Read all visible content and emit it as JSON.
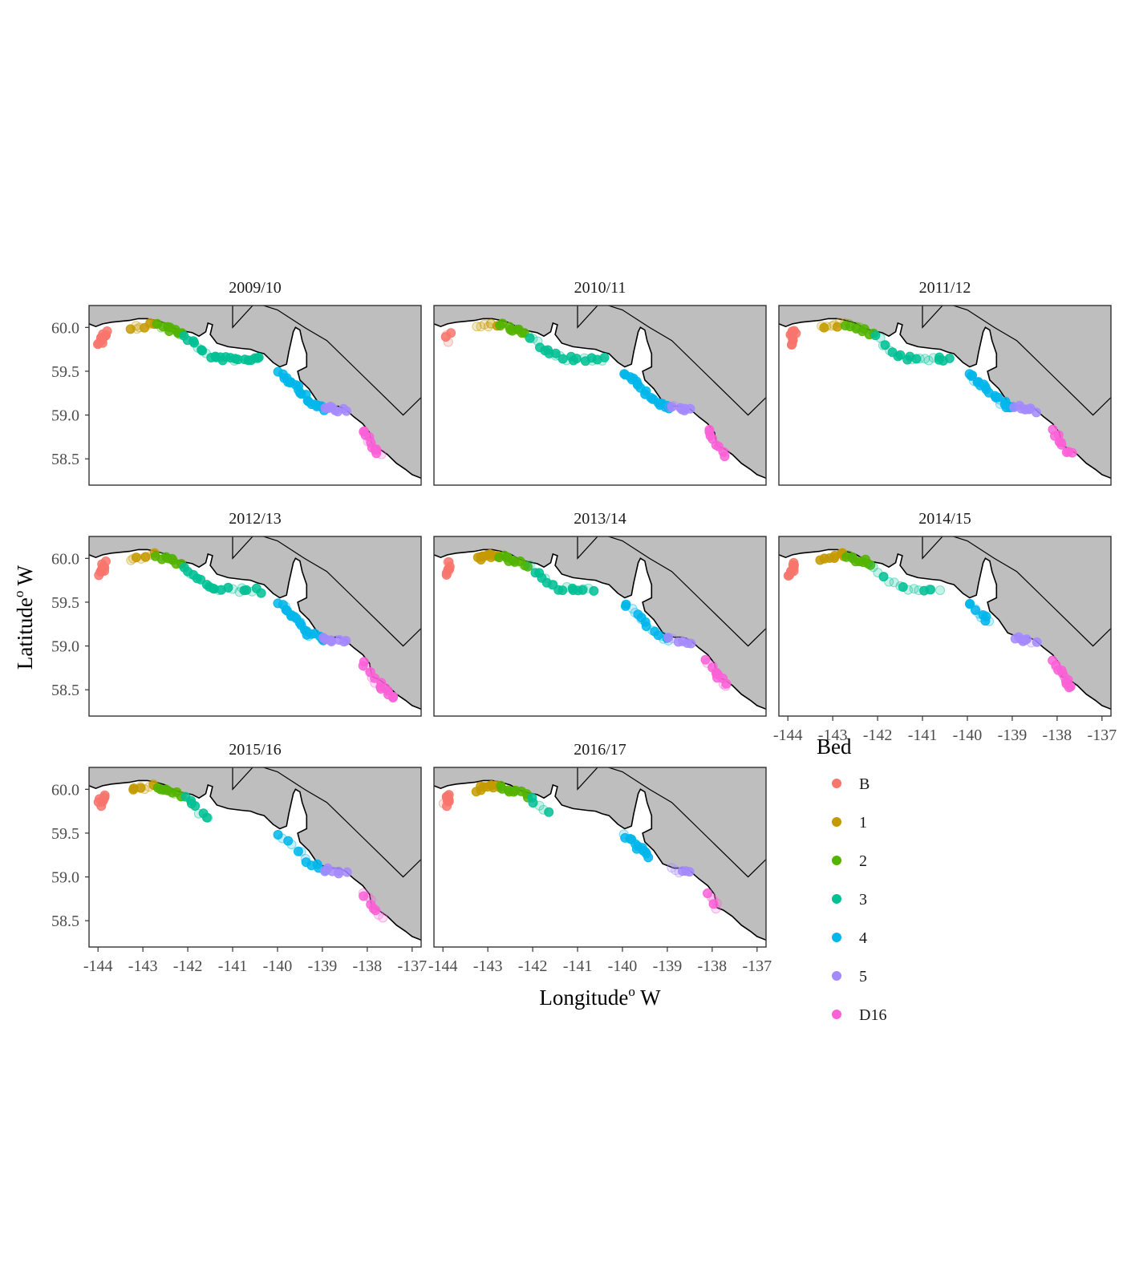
{
  "chart_data": {
    "type": "scatter",
    "title": "",
    "xlabel": "Longitude",
    "xlabel_sup": "o",
    "xlabel_tail": " W",
    "ylabel": "Latitude",
    "ylabel_sup": "o",
    "ylabel_tail": " W",
    "xlim": [
      -144.2,
      -136.8
    ],
    "ylim": [
      58.2,
      60.25
    ],
    "x_ticks": [
      -144,
      -143,
      -142,
      -141,
      -140,
      -139,
      -138,
      -137
    ],
    "x_tick_labels": [
      "-144",
      "-143",
      "-142",
      "-141",
      "-140",
      "-139",
      "-138",
      "-137"
    ],
    "y_ticks": [
      60.0,
      59.5,
      59.0,
      58.5
    ],
    "y_tick_labels": [
      "60.0",
      "59.5",
      "59.0",
      "58.5"
    ],
    "grid": false,
    "legend_placement": "right",
    "legend_title": "Bed",
    "land_color": "#bebebe",
    "coast_color": "#000000",
    "series": [
      {
        "name": "B",
        "color": "#F8766D"
      },
      {
        "name": "1",
        "color": "#C49A00"
      },
      {
        "name": "2",
        "color": "#53B400"
      },
      {
        "name": "3",
        "color": "#00C094"
      },
      {
        "name": "4",
        "color": "#00B6EB"
      },
      {
        "name": "5",
        "color": "#A58AFF"
      },
      {
        "name": "D16",
        "color": "#FB61D7"
      }
    ],
    "bed_tracks": {
      "B": [
        [
          -143.95,
          59.82
        ],
        [
          -143.85,
          59.95
        ]
      ],
      "1": [
        [
          -143.25,
          60.0
        ],
        [
          -142.75,
          60.04
        ]
      ],
      "2": [
        [
          -142.7,
          60.03
        ],
        [
          -142.1,
          59.93
        ]
      ],
      "3": [
        [
          -142.05,
          59.9
        ],
        [
          -141.75,
          59.75
        ],
        [
          -141.4,
          59.65
        ],
        [
          -140.9,
          59.64
        ],
        [
          -140.4,
          59.63
        ]
      ],
      "4": [
        [
          -139.95,
          59.48
        ],
        [
          -139.55,
          59.3
        ],
        [
          -139.3,
          59.15
        ],
        [
          -138.95,
          59.08
        ]
      ],
      "5": [
        [
          -138.95,
          59.09
        ],
        [
          -138.5,
          59.05
        ]
      ],
      "D16": [
        [
          -138.1,
          58.82
        ],
        [
          -137.8,
          58.6
        ],
        [
          -137.4,
          58.4
        ]
      ]
    },
    "panels": [
      {
        "title": "2009/10",
        "show_y_ticks": true,
        "show_x_ticks": false,
        "beds": [
          {
            "bed": "B",
            "from": 0.0,
            "to": 1.0,
            "n": 14,
            "solid": 0.9
          },
          {
            "bed": "1",
            "from": 0.0,
            "to": 1.0,
            "n": 8,
            "solid": 0.5
          },
          {
            "bed": "2",
            "from": 0.0,
            "to": 1.0,
            "n": 12,
            "solid": 0.9
          },
          {
            "bed": "3",
            "from": 0.0,
            "to": 1.0,
            "n": 24,
            "solid": 0.9
          },
          {
            "bed": "4",
            "from": 0.0,
            "to": 1.0,
            "n": 22,
            "solid": 0.9
          },
          {
            "bed": "5",
            "from": 0.0,
            "to": 1.0,
            "n": 8,
            "solid": 0.9
          },
          {
            "bed": "D16",
            "from": 0.0,
            "to": 0.55,
            "n": 12,
            "solid": 0.8
          }
        ]
      },
      {
        "title": "2010/11",
        "show_y_ticks": false,
        "show_x_ticks": false,
        "beds": [
          {
            "bed": "B",
            "from": 0.2,
            "to": 1.0,
            "n": 4,
            "solid": 0.3
          },
          {
            "bed": "1",
            "from": 0.0,
            "to": 1.0,
            "n": 8,
            "solid": 0.25
          },
          {
            "bed": "2",
            "from": 0.0,
            "to": 1.0,
            "n": 10,
            "solid": 0.9
          },
          {
            "bed": "3",
            "from": 0.0,
            "to": 1.0,
            "n": 22,
            "solid": 0.6
          },
          {
            "bed": "4",
            "from": 0.0,
            "to": 1.0,
            "n": 22,
            "solid": 0.9
          },
          {
            "bed": "5",
            "from": 0.0,
            "to": 1.0,
            "n": 8,
            "solid": 0.9
          },
          {
            "bed": "D16",
            "from": 0.0,
            "to": 0.6,
            "n": 9,
            "solid": 0.7
          }
        ]
      },
      {
        "title": "2011/12",
        "show_y_ticks": false,
        "show_x_ticks": false,
        "beds": [
          {
            "bed": "B",
            "from": 0.0,
            "to": 1.0,
            "n": 10,
            "solid": 0.9
          },
          {
            "bed": "1",
            "from": 0.0,
            "to": 1.0,
            "n": 8,
            "solid": 0.5
          },
          {
            "bed": "2",
            "from": 0.0,
            "to": 1.0,
            "n": 12,
            "solid": 0.9
          },
          {
            "bed": "3",
            "from": 0.0,
            "to": 1.0,
            "n": 20,
            "solid": 0.45
          },
          {
            "bed": "4",
            "from": 0.0,
            "to": 1.0,
            "n": 22,
            "solid": 0.9
          },
          {
            "bed": "5",
            "from": 0.0,
            "to": 1.0,
            "n": 8,
            "solid": 0.9
          },
          {
            "bed": "D16",
            "from": 0.0,
            "to": 0.6,
            "n": 9,
            "solid": 0.7
          }
        ]
      },
      {
        "title": "2012/13",
        "show_y_ticks": true,
        "show_x_ticks": false,
        "beds": [
          {
            "bed": "B",
            "from": 0.0,
            "to": 1.0,
            "n": 10,
            "solid": 0.9
          },
          {
            "bed": "1",
            "from": 0.0,
            "to": 1.0,
            "n": 8,
            "solid": 0.5
          },
          {
            "bed": "2",
            "from": 0.0,
            "to": 1.0,
            "n": 10,
            "solid": 0.9
          },
          {
            "bed": "3",
            "from": 0.0,
            "to": 1.0,
            "n": 22,
            "solid": 0.7
          },
          {
            "bed": "4",
            "from": 0.0,
            "to": 1.0,
            "n": 22,
            "solid": 0.9
          },
          {
            "bed": "5",
            "from": 0.0,
            "to": 1.0,
            "n": 8,
            "solid": 0.9
          },
          {
            "bed": "D16",
            "from": 0.0,
            "to": 1.0,
            "n": 16,
            "solid": 0.8
          }
        ]
      },
      {
        "title": "2013/14",
        "show_y_ticks": false,
        "show_x_ticks": false,
        "beds": [
          {
            "bed": "B",
            "from": 0.0,
            "to": 1.0,
            "n": 8,
            "solid": 0.9
          },
          {
            "bed": "1",
            "from": 0.0,
            "to": 1.0,
            "n": 12,
            "solid": 0.9
          },
          {
            "bed": "2",
            "from": 0.0,
            "to": 1.0,
            "n": 12,
            "solid": 0.9
          },
          {
            "bed": "3",
            "from": 0.0,
            "to": 0.85,
            "n": 18,
            "solid": 0.5
          },
          {
            "bed": "4",
            "from": 0.0,
            "to": 1.0,
            "n": 16,
            "solid": 0.5
          },
          {
            "bed": "5",
            "from": 0.0,
            "to": 1.0,
            "n": 6,
            "solid": 0.9
          },
          {
            "bed": "D16",
            "from": 0.0,
            "to": 0.6,
            "n": 12,
            "solid": 0.8
          }
        ]
      },
      {
        "title": "2014/15",
        "show_y_ticks": false,
        "show_x_ticks": true,
        "beds": [
          {
            "bed": "B",
            "from": 0.0,
            "to": 1.0,
            "n": 10,
            "solid": 0.9
          },
          {
            "bed": "1",
            "from": 0.0,
            "to": 1.0,
            "n": 10,
            "solid": 0.9
          },
          {
            "bed": "2",
            "from": 0.0,
            "to": 0.9,
            "n": 10,
            "solid": 0.9
          },
          {
            "bed": "3",
            "from": 0.0,
            "to": 0.85,
            "n": 14,
            "solid": 0.2
          },
          {
            "bed": "4",
            "from": 0.0,
            "to": 0.45,
            "n": 10,
            "solid": 0.7
          },
          {
            "bed": "5",
            "from": 0.0,
            "to": 1.0,
            "n": 8,
            "solid": 0.7
          },
          {
            "bed": "D16",
            "from": 0.0,
            "to": 0.6,
            "n": 14,
            "solid": 0.8
          }
        ]
      },
      {
        "title": "2015/16",
        "show_y_ticks": true,
        "show_x_ticks": true,
        "beds": [
          {
            "bed": "B",
            "from": 0.0,
            "to": 1.0,
            "n": 10,
            "solid": 0.9
          },
          {
            "bed": "1",
            "from": 0.0,
            "to": 1.0,
            "n": 8,
            "solid": 0.6
          },
          {
            "bed": "2",
            "from": 0.0,
            "to": 1.0,
            "n": 10,
            "solid": 0.9
          },
          {
            "bed": "3",
            "from": 0.0,
            "to": 0.35,
            "n": 8,
            "solid": 0.8
          },
          {
            "bed": "4",
            "from": 0.0,
            "to": 1.0,
            "n": 12,
            "solid": 0.6
          },
          {
            "bed": "5",
            "from": 0.0,
            "to": 1.0,
            "n": 6,
            "solid": 0.9
          },
          {
            "bed": "D16",
            "from": 0.0,
            "to": 0.6,
            "n": 9,
            "solid": 0.5
          }
        ]
      },
      {
        "title": "2016/17",
        "show_y_ticks": false,
        "show_x_ticks": true,
        "beds": [
          {
            "bed": "B",
            "from": 0.0,
            "to": 1.0,
            "n": 10,
            "solid": 0.9
          },
          {
            "bed": "1",
            "from": 0.0,
            "to": 1.0,
            "n": 10,
            "solid": 0.9
          },
          {
            "bed": "2",
            "from": 0.0,
            "to": 1.0,
            "n": 10,
            "solid": 0.9
          },
          {
            "bed": "3",
            "from": 0.0,
            "to": 0.25,
            "n": 5,
            "solid": 0.9
          },
          {
            "bed": "4",
            "from": 0.0,
            "to": 0.55,
            "n": 12,
            "solid": 0.9
          },
          {
            "bed": "5",
            "from": 0.0,
            "to": 1.0,
            "n": 6,
            "solid": 0.7
          },
          {
            "bed": "D16",
            "from": 0.0,
            "to": 0.35,
            "n": 6,
            "solid": 0.5
          }
        ]
      }
    ]
  }
}
